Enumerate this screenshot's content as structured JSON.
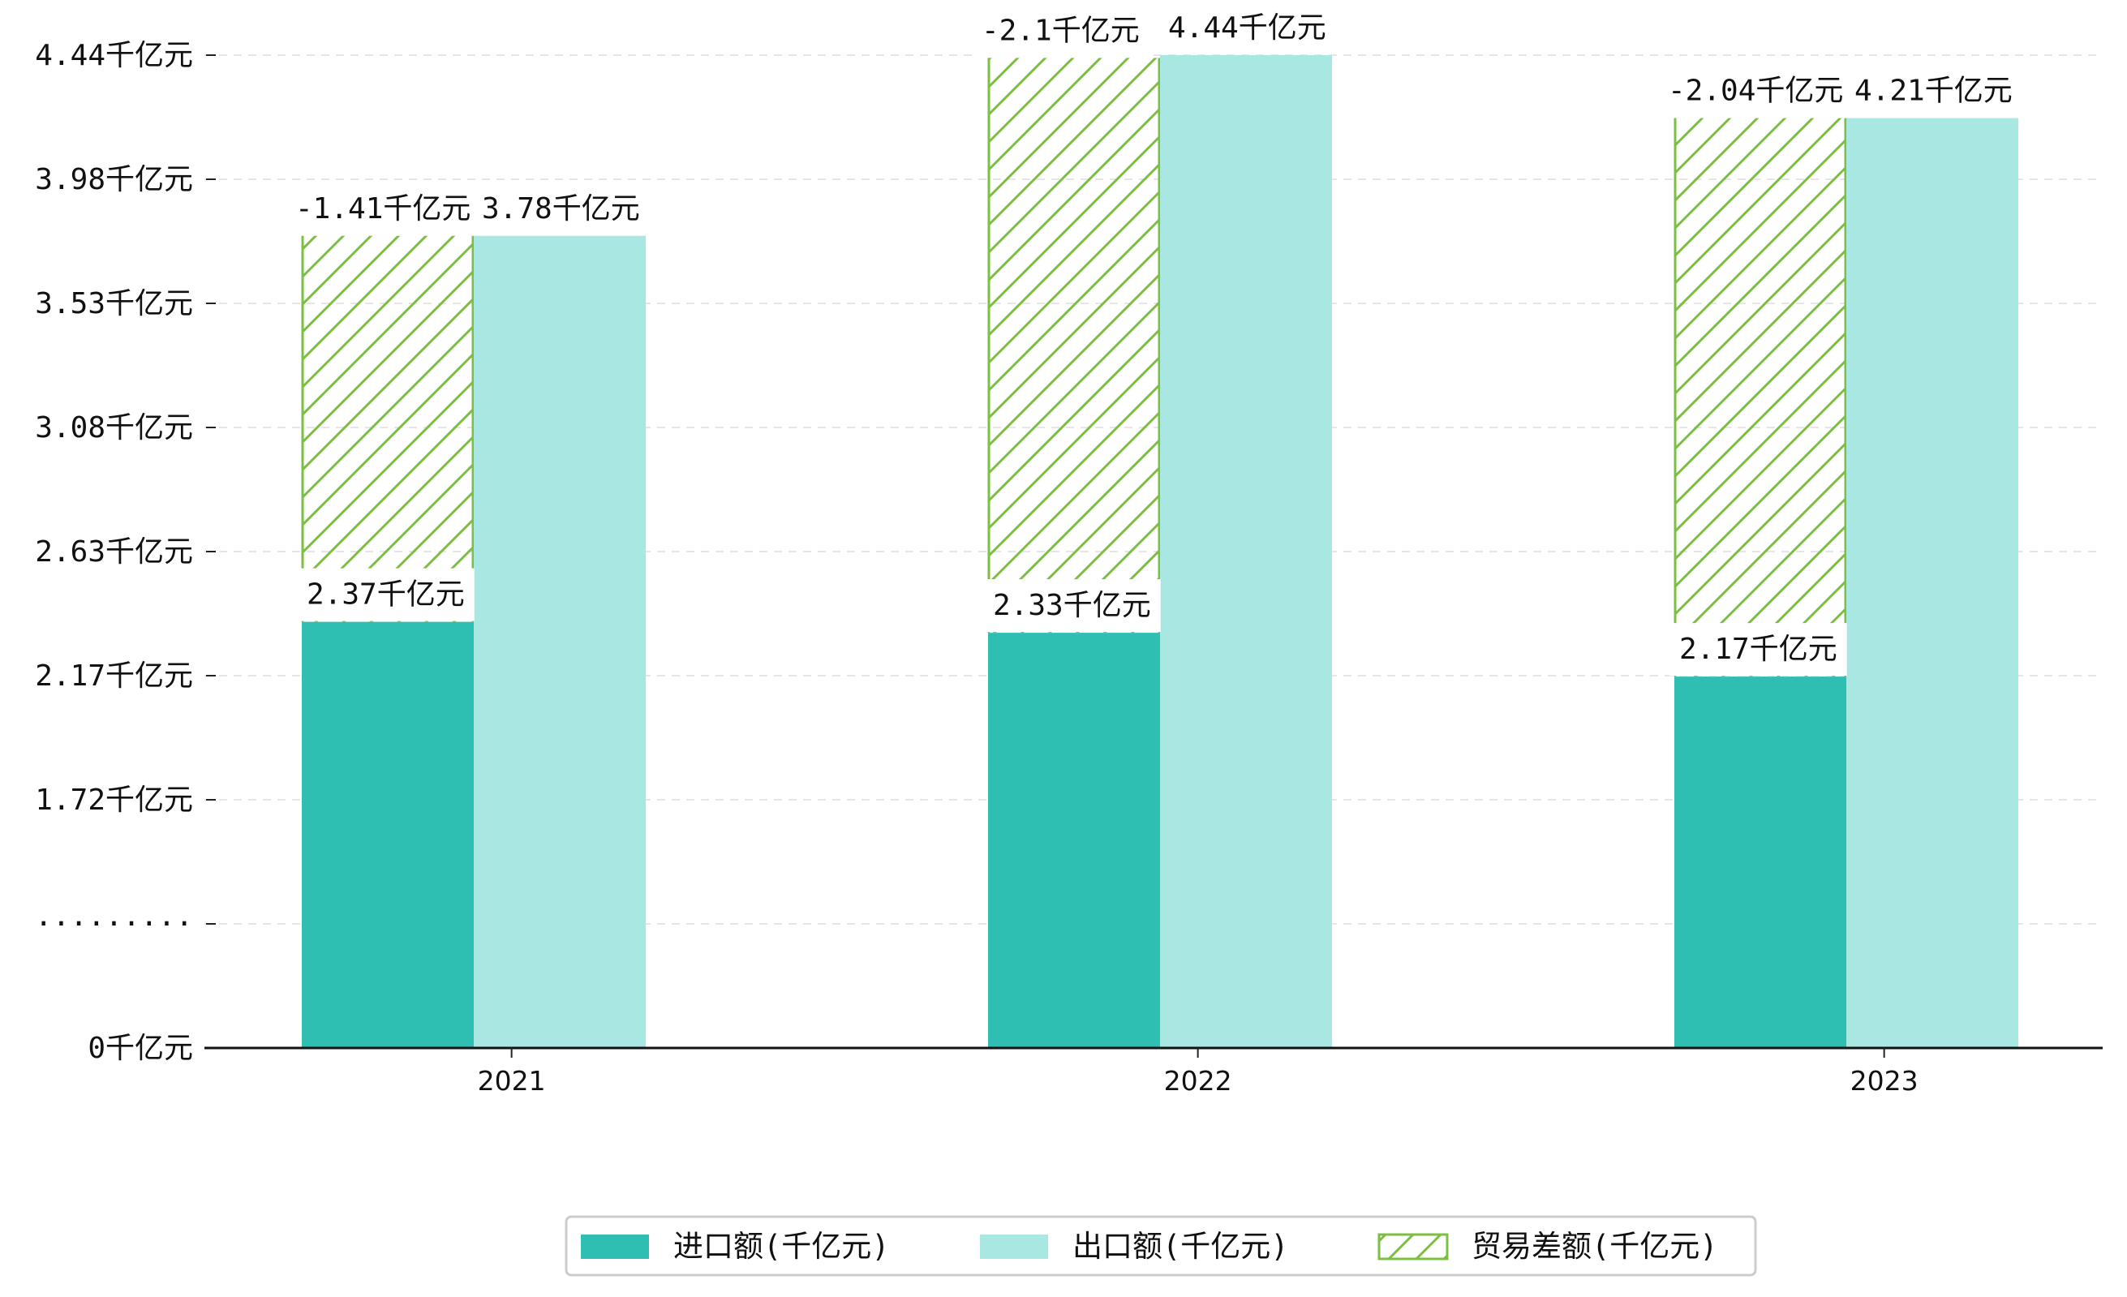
{
  "chart_data": {
    "type": "bar",
    "categories": [
      "2021",
      "2022",
      "2023"
    ],
    "series": [
      {
        "name": "进口额(千亿元)",
        "values": [
          2.37,
          2.33,
          2.17
        ],
        "labels": [
          "2.37千亿元",
          "2.33千亿元",
          "2.17千亿元"
        ],
        "color": "#2ebfb2",
        "style": "solid"
      },
      {
        "name": "出口额(千亿元)",
        "values": [
          3.78,
          4.44,
          4.21
        ],
        "labels": [
          "3.78千亿元",
          "4.44千亿元",
          "4.21千亿元"
        ],
        "color": "#a8e7e2",
        "style": "solid"
      },
      {
        "name": "贸易差额(千亿元)",
        "values": [
          -1.41,
          -2.1,
          -2.04
        ],
        "labels": [
          "-1.41千亿元",
          "-2.1千亿元",
          "-2.04千亿元"
        ],
        "color": "#7bc043",
        "style": "hatched"
      }
    ],
    "y_axis": {
      "broken": true,
      "tick_labels": [
        "0千亿元",
        "·········",
        "1.72千亿元",
        "2.17千亿元",
        "2.63千亿元",
        "3.08千亿元",
        "3.53千亿元",
        "3.98千亿元",
        "4.44千亿元"
      ],
      "tick_values": [
        0,
        null,
        1.72,
        2.17,
        2.63,
        3.08,
        3.53,
        3.98,
        4.44
      ]
    },
    "grid": "horizontal-dashed",
    "legend_position": "bottom-center"
  }
}
